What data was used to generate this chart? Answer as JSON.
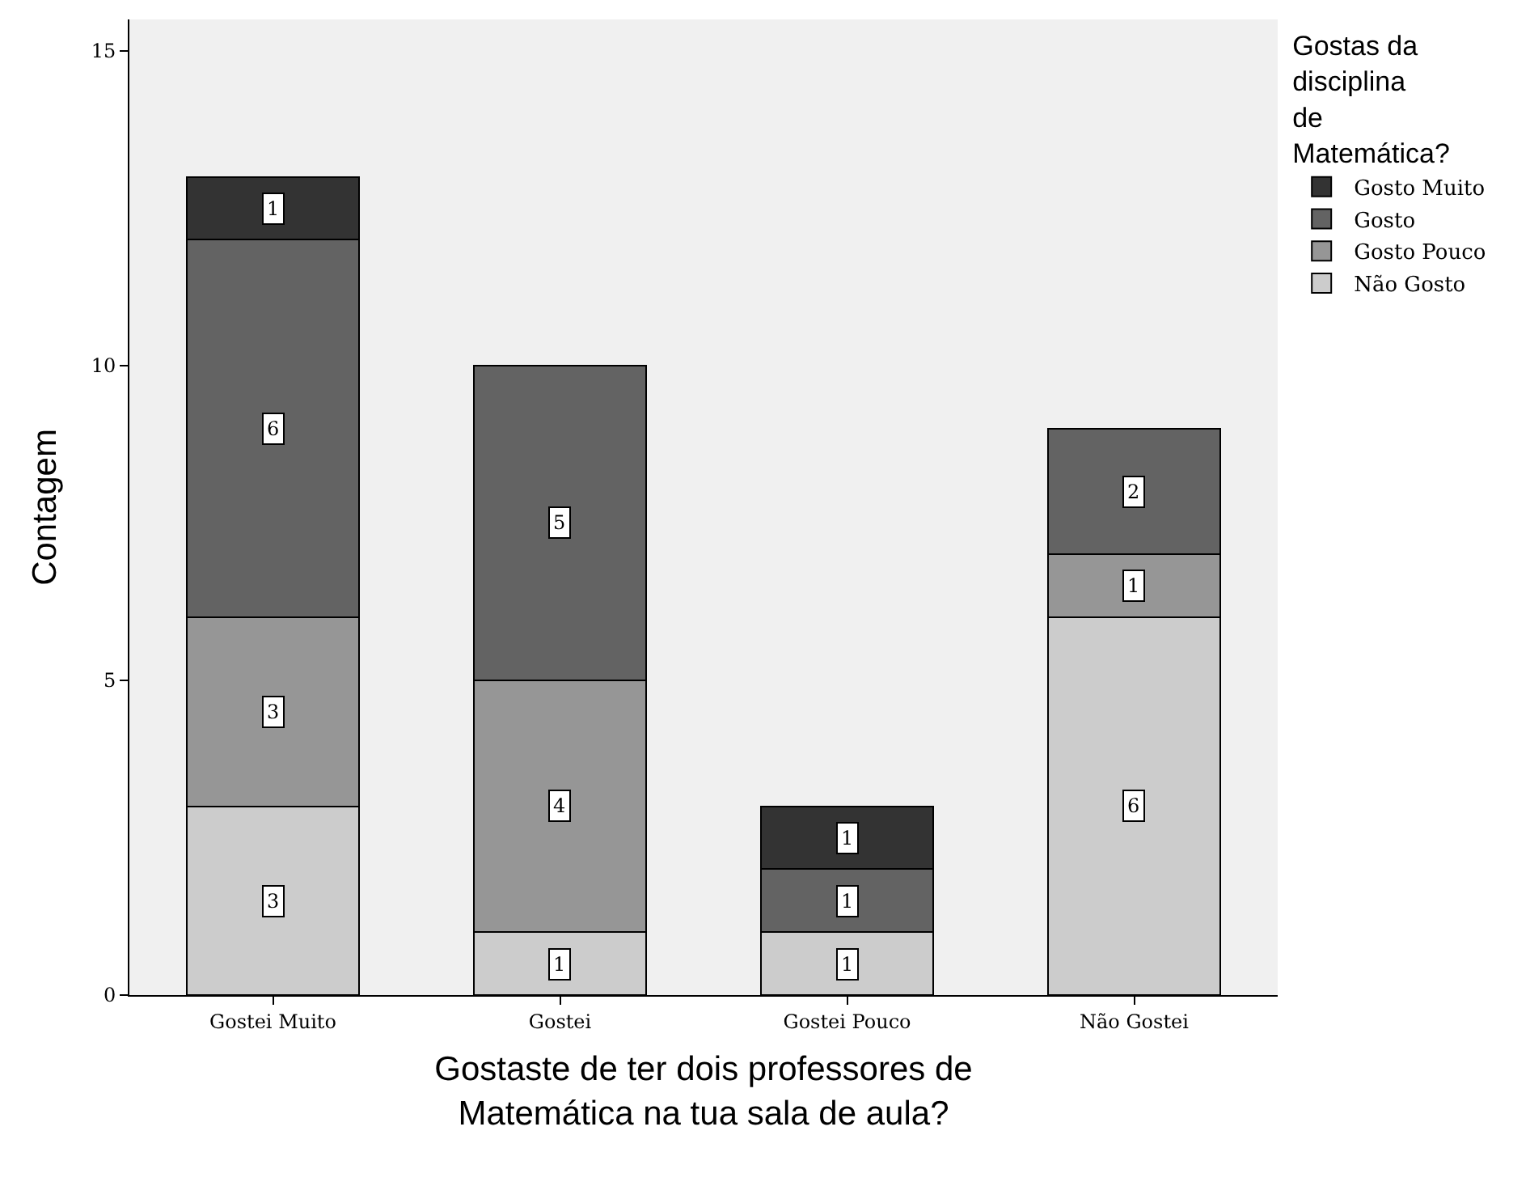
{
  "chart_data": {
    "type": "bar",
    "stacked": true,
    "xlabel": "Gostaste de ter dois professores de Matemática na tua sala de aula?",
    "ylabel": "Contagem",
    "legend_title": "Gostas da disciplina de Matemática?",
    "legend": "top right",
    "grid": false,
    "data_labels": true,
    "categories": [
      "Gostei Muito",
      "Gostei",
      "Gostei Pouco",
      "Não Gostei"
    ],
    "ylim": [
      0,
      15.5
    ],
    "yticks": [
      0,
      5,
      10,
      15
    ],
    "series": [
      {
        "name": "Não Gosto",
        "color": "#cccccc",
        "values": [
          3,
          1,
          1,
          6
        ]
      },
      {
        "name": "Gosto Pouco",
        "color": "#969696",
        "values": [
          3,
          4,
          null,
          1
        ]
      },
      {
        "name": "Gosto",
        "color": "#636363",
        "values": [
          6,
          5,
          1,
          2
        ]
      },
      {
        "name": "Gosto Muito",
        "color": "#333333",
        "values": [
          1,
          null,
          1,
          null
        ]
      }
    ]
  }
}
